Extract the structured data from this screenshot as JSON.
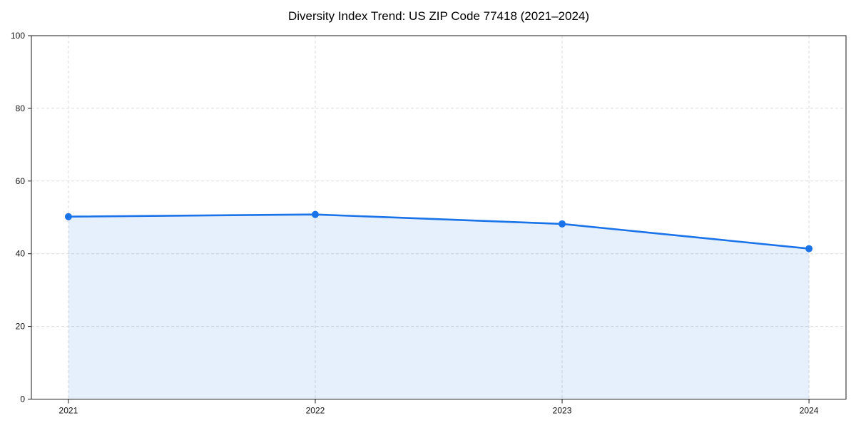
{
  "figure": {
    "title": "Diversity Index Trend: US ZIP Code 77418 (2021–2024)"
  },
  "chart_data": {
    "type": "line",
    "area_fill": true,
    "title": "Diversity Index Trend: US ZIP Code 77418 (2021–2024)",
    "x": [
      2021,
      2022,
      2023,
      2024
    ],
    "x_tick_labels": [
      "2021",
      "2022",
      "2023",
      "2024"
    ],
    "series": [
      {
        "name": "Diversity Index",
        "values": [
          50.2,
          50.8,
          48.2,
          41.4
        ]
      }
    ],
    "xlabel": "",
    "ylabel": "",
    "xlim": [
      2021,
      2024
    ],
    "x_margin": 0.05,
    "ylim": [
      0,
      100
    ],
    "yticks": [
      0,
      20,
      40,
      60,
      80,
      100
    ],
    "grid": "dashed",
    "legend": "none",
    "marker": "circle",
    "colors": {
      "line": "#1a73e8",
      "fill": "#e8f0fc",
      "grid": "#dcdcdc",
      "axis": "#1a1a1a",
      "tick_text": "#111111",
      "background": "#ffffff"
    }
  }
}
